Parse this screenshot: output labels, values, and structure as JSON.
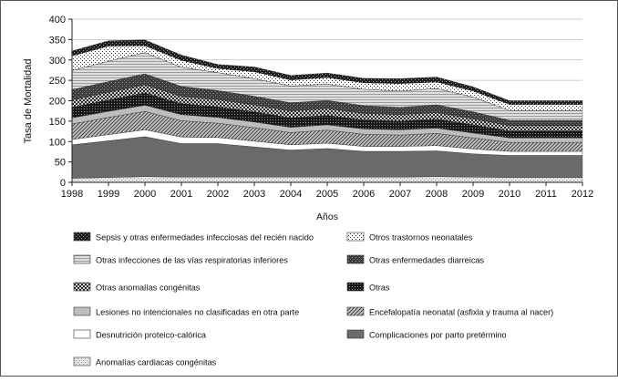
{
  "chart_data": {
    "type": "area",
    "stacked": true,
    "title": "",
    "xlabel": "Años",
    "ylabel": "Tasa de Mortalidad",
    "ylim": [
      0,
      400
    ],
    "yticks": [
      0,
      50,
      100,
      150,
      200,
      250,
      300,
      350,
      400
    ],
    "x": [
      1998,
      1999,
      2000,
      2001,
      2002,
      2003,
      2004,
      2005,
      2006,
      2007,
      2008,
      2009,
      2010,
      2011,
      2012
    ],
    "grid": true,
    "series": [
      {
        "name": "Anomalías cardiacas congénitas",
        "pattern": "speckle-light",
        "values": [
          10,
          12,
          14,
          13,
          13,
          13,
          13,
          13,
          13,
          13,
          14,
          13,
          12,
          12,
          12
        ]
      },
      {
        "name": "Complicaciones por parto pretérmino",
        "pattern": "dark-gray",
        "values": [
          82,
          90,
          98,
          82,
          82,
          74,
          66,
          70,
          63,
          63,
          63,
          57,
          54,
          54,
          54
        ]
      },
      {
        "name": "Desnutrición proteico-calórica",
        "pattern": "white",
        "values": [
          13,
          15,
          17,
          16,
          15,
          14,
          13,
          13,
          12,
          12,
          13,
          12,
          10,
          10,
          10
        ]
      },
      {
        "name": "Encefalopatía neonatal (asfixia y trauma al nacer)",
        "pattern": "diagonal",
        "values": [
          38,
          42,
          45,
          40,
          35,
          33,
          30,
          32,
          30,
          28,
          30,
          27,
          22,
          22,
          22
        ]
      },
      {
        "name": "Lesiones no intencionales no clasificadas en otra parte",
        "pattern": "light-gray",
        "values": [
          15,
          15,
          15,
          15,
          14,
          14,
          13,
          13,
          13,
          13,
          13,
          12,
          11,
          11,
          11
        ]
      },
      {
        "name": "Otras",
        "pattern": "dense-dots",
        "values": [
          26,
          28,
          30,
          27,
          26,
          25,
          23,
          23,
          22,
          21,
          22,
          20,
          17,
          17,
          17
        ]
      },
      {
        "name": "Otras anomalías congénitas",
        "pattern": "checker",
        "values": [
          18,
          19,
          20,
          18,
          18,
          17,
          17,
          17,
          16,
          16,
          16,
          15,
          13,
          13,
          13
        ]
      },
      {
        "name": "Otras enfermedades diarreicas",
        "pattern": "dark-dots",
        "values": [
          25,
          26,
          27,
          24,
          22,
          21,
          20,
          20,
          19,
          18,
          19,
          17,
          13,
          13,
          13
        ]
      },
      {
        "name": "Otras infecciones de las vías respiratorias inferiores",
        "pattern": "hlines",
        "values": [
          47,
          50,
          52,
          47,
          44,
          43,
          41,
          40,
          40,
          40,
          40,
          36,
          24,
          24,
          24
        ]
      },
      {
        "name": "Otros trastornos neonatales",
        "pattern": "sparse-dots",
        "values": [
          36,
          37,
          17,
          17,
          10,
          17,
          15,
          16,
          16,
          18,
          16,
          15,
          15,
          15,
          15
        ]
      },
      {
        "name": "Sepsis y otras enfermedades infecciosas del recién nacido",
        "pattern": "dark-check",
        "values": [
          12,
          13,
          14,
          13,
          10,
          12,
          11,
          11,
          11,
          12,
          12,
          10,
          9,
          9,
          9
        ]
      }
    ],
    "legend": {
      "placement": "bottom",
      "left": [
        "Sepsis y otras enfermedades infecciosas del recién nacido",
        "Otras infecciones de las vías respiratorias inferiores",
        "Otras anomalías congénitas",
        "Lesiones no intencionales no clasificadas en otra parte",
        "Desnutrición proteico-calórica",
        "Anomalías cardiacas congénitas"
      ],
      "right": [
        "Otros trastornos neonatales",
        "Otras enfermedades diarreicas",
        "Otras",
        "Encefalopatía neonatal (asfixia y trauma al nacer)",
        "Complicaciones por parto pretérmino"
      ]
    }
  }
}
